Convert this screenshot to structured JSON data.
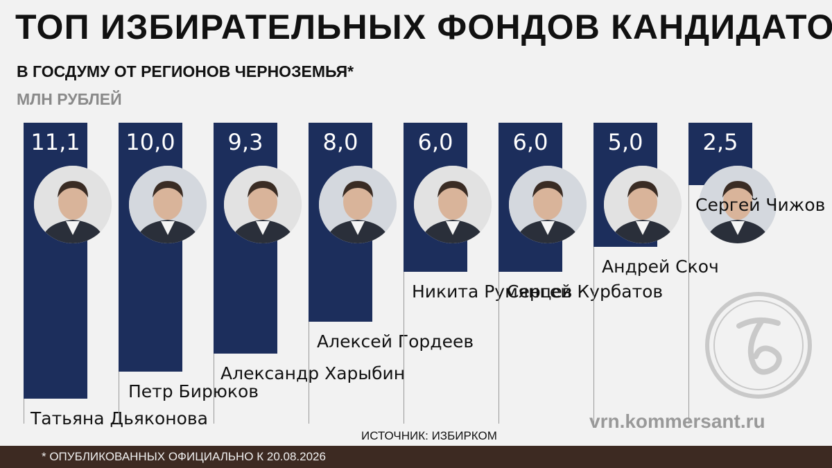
{
  "title": "ТОП ИЗБИРАТЕЛЬНЫХ ФОНДОВ КАНДИДАТОВ",
  "subtitle": "В ГОСДУМУ ОТ РЕГИОНОВ ЧЕРНОЗЕМЬЯ*",
  "unit": "МЛН РУБЛЕЙ",
  "source": "ИСТОЧНИК: ИЗБИРКОМ",
  "site": "vrn.kommersant.ru",
  "footnote": "* ОПУБЛИКОВАННЫХ ОФИЦИАЛЬНО К 20.08.2026",
  "colors": {
    "bar": "#1c2e5c",
    "footer": "#3d2a22",
    "logo": "#c9c9c9",
    "background": "#f2f2f2"
  },
  "chart_data": {
    "type": "bar",
    "title": "ТОП ИЗБИРАТЕЛЬНЫХ ФОНДОВ КАНДИДАТОВ",
    "subtitle": "В ГОСДУМУ ОТ РЕГИОНОВ ЧЕРНОЗЕМЬЯ*",
    "ylabel": "МЛН РУБЛЕЙ",
    "ylim": [
      0,
      11.1
    ],
    "grid": false,
    "categories": [
      "Татьяна Дьяконова",
      "Петр Бирюков",
      "Александр Харыбин",
      "Алексей Гордеев",
      "Никита Румянцев",
      "Сергей Курбатов",
      "Андрей Скоч",
      "Сергей Чижов"
    ],
    "values": [
      11.1,
      10.0,
      9.3,
      8.0,
      6.0,
      6.0,
      5.0,
      2.5
    ],
    "value_labels": [
      "11,1",
      "10,0",
      "9,3",
      "8,0",
      "6,0",
      "6,0",
      "5,0",
      "2,5"
    ]
  }
}
